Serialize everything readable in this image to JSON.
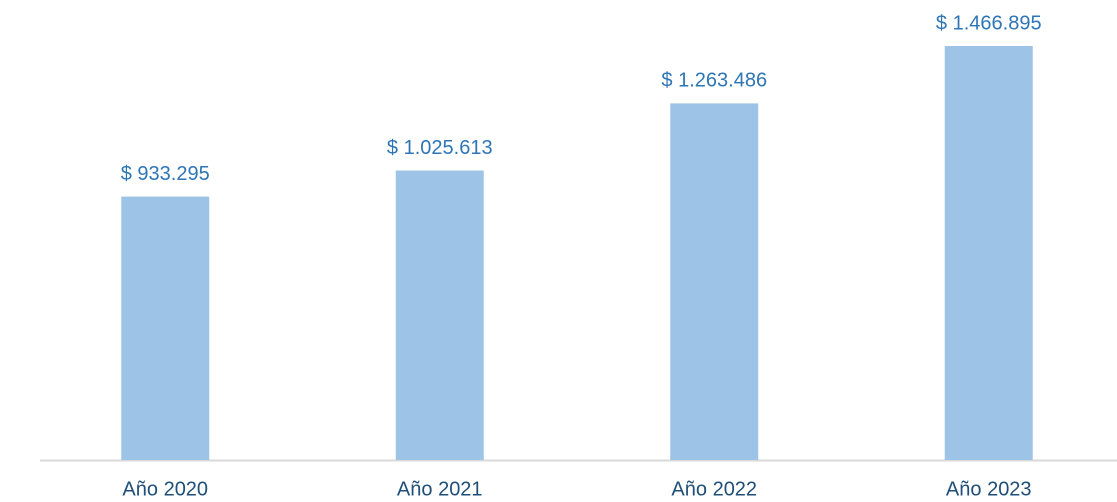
{
  "chart_data": {
    "type": "bar",
    "categories": [
      "Año 2020",
      "Año 2021",
      "Año 2022",
      "Año 2023"
    ],
    "values": [
      933295,
      1025613,
      1263486,
      1466895
    ],
    "value_labels": [
      "$ 933.295",
      "$ 1.025.613",
      "$ 1.263.486",
      "$ 1.466.895"
    ],
    "color": "#9dc3e6"
  }
}
